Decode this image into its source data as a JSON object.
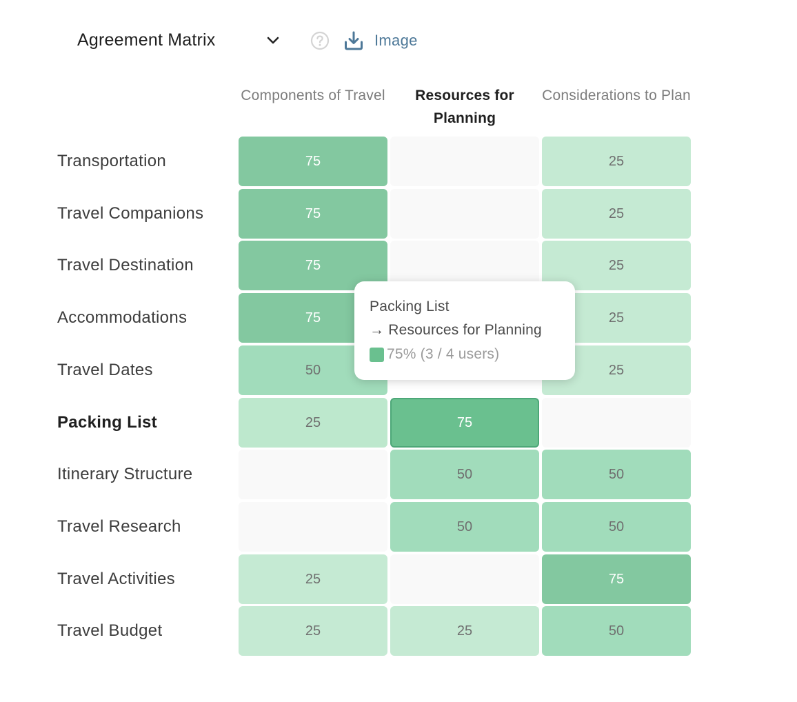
{
  "toolbar": {
    "view_select_value": "Agreement Matrix",
    "chevron_icon": "chevron-down-icon",
    "help_icon": "question-circle-icon",
    "download_icon": "download-icon",
    "download_label": "Image"
  },
  "chart_data": {
    "type": "heatmap",
    "columns": [
      "Components of Travel",
      "Resources for Planning",
      "Considerations to Plan"
    ],
    "rows": [
      "Transportation",
      "Travel Companions",
      "Travel Destination",
      "Accommodations",
      "Travel Dates",
      "Packing List",
      "Itinerary Structure",
      "Travel Research",
      "Travel Activities",
      "Travel Budget"
    ],
    "values": [
      [
        75,
        0,
        25
      ],
      [
        75,
        0,
        25
      ],
      [
        75,
        0,
        25
      ],
      [
        75,
        null,
        25
      ],
      [
        50,
        null,
        25
      ],
      [
        25,
        75,
        0
      ],
      [
        0,
        50,
        50
      ],
      [
        0,
        50,
        50
      ],
      [
        25,
        0,
        75
      ],
      [
        25,
        25,
        50
      ]
    ],
    "highlighted_row": 5,
    "highlighted_col": 1,
    "colors": {
      "empty": "#f9f9f9",
      "low": "#c5ead3",
      "mid": "#a1dcbb",
      "high": "#83c8a0",
      "selected": "#6ac08f"
    }
  },
  "tooltip": {
    "title": "Packing List",
    "target": "→ Resources for Planning",
    "value": "75% (3 / 4 users)",
    "swatch_color": "#6ac08f"
  }
}
